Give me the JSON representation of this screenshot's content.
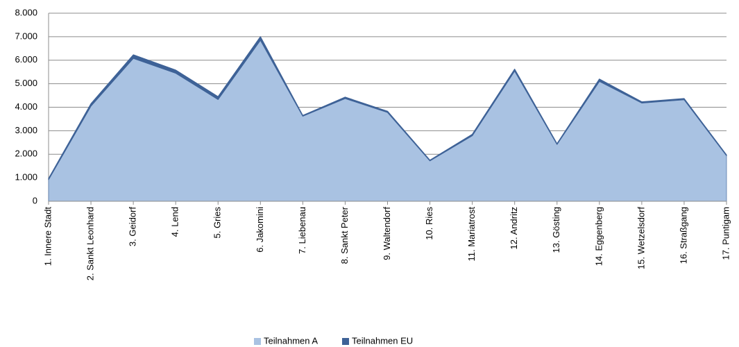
{
  "chart_data": {
    "type": "stacked_area",
    "categories": [
      "1. Innere Stadt",
      "2. Sankt Leonhard",
      "3. Geidorf",
      "4. Lend",
      "5. Gries",
      "6. Jakomini",
      "7. Liebenau",
      "8. Sankt Peter",
      "9. Waltendorf",
      "10. Ries",
      "11. Mariatrost",
      "12. Andritz",
      "13. Gösting",
      "14. Eggenberg",
      "15. Wetzelsdorf",
      "16. Straßgang",
      "17. Puntigam"
    ],
    "series": [
      {
        "name": "Teilnahmen A",
        "color": "#a9c2e2",
        "values": [
          920,
          4050,
          6080,
          5450,
          4330,
          6850,
          3620,
          4370,
          3780,
          1720,
          2790,
          5540,
          2420,
          5100,
          4180,
          4320,
          1940
        ]
      },
      {
        "name": "Teilnahmen EU",
        "color": "#3e6297",
        "values": [
          50,
          100,
          150,
          130,
          120,
          150,
          30,
          60,
          50,
          30,
          60,
          80,
          30,
          100,
          50,
          50,
          30
        ]
      }
    ],
    "ylim": [
      0,
      8000
    ],
    "yticks": [
      0,
      {
        "value": 1000,
        "label": "1.000"
      },
      {
        "value": 2000,
        "label": "2.000"
      },
      {
        "value": 3000,
        "label": "3.000"
      },
      {
        "value": 4000,
        "label": "4.000"
      },
      {
        "value": 5000,
        "label": "5.000"
      },
      {
        "value": 6000,
        "label": "6.000"
      },
      {
        "value": 7000,
        "label": "7.000"
      },
      {
        "value": 8000,
        "label": "8.000"
      }
    ],
    "grid": true,
    "legend": "bottom"
  }
}
